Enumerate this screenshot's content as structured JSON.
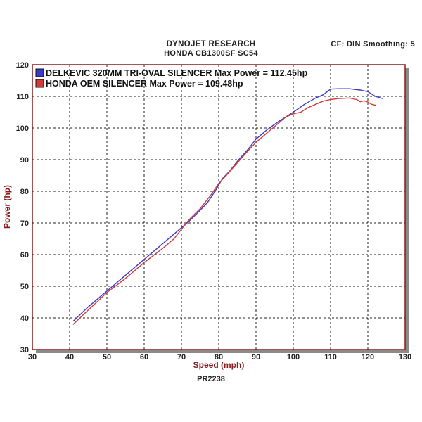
{
  "header": {
    "title": "DYNOJET RESEARCH",
    "subtitle": "HONDA CB1300SF SC54",
    "settings": "CF: DIN  Smoothing: 5"
  },
  "footer": {
    "code": "PR2238"
  },
  "colors": {
    "series_blue": "#3a3acb",
    "series_red": "#d23a3a",
    "frame": "#8b1a1a",
    "plot_bg": "#ffffff"
  },
  "chart_data": {
    "type": "line",
    "xlabel": "Speed (mph)",
    "ylabel": "Power (hp)",
    "xlim": [
      30,
      130
    ],
    "ylim": [
      30,
      120
    ],
    "x_ticks": [
      30,
      40,
      50,
      60,
      70,
      80,
      90,
      100,
      110,
      120,
      130
    ],
    "y_ticks": [
      30,
      40,
      50,
      60,
      70,
      80,
      90,
      100,
      110,
      120
    ],
    "grid": true,
    "legend_position": "top-left",
    "series": [
      {
        "name": "DELKEVIC 320MM TRI-OVAL SILENCER Max Power = 112.45hp",
        "color": "#3a3acb",
        "points": [
          [
            41,
            39
          ],
          [
            45,
            43.5
          ],
          [
            50,
            48.5
          ],
          [
            55,
            53.5
          ],
          [
            60,
            58.5
          ],
          [
            65,
            63.5
          ],
          [
            70,
            68.5
          ],
          [
            72,
            70.5
          ],
          [
            75,
            74
          ],
          [
            77,
            76.5
          ],
          [
            79,
            80
          ],
          [
            81,
            84
          ],
          [
            83,
            86.5
          ],
          [
            85,
            89.5
          ],
          [
            88,
            93.5
          ],
          [
            90,
            96.5
          ],
          [
            93,
            99.5
          ],
          [
            96,
            102
          ],
          [
            100,
            105
          ],
          [
            103,
            107.5
          ],
          [
            106,
            109.5
          ],
          [
            108,
            110.5
          ],
          [
            110,
            112.3
          ],
          [
            112,
            112.4
          ],
          [
            115,
            112.4
          ],
          [
            118,
            112
          ],
          [
            120,
            111.5
          ],
          [
            122,
            110
          ],
          [
            124,
            109.3
          ]
        ]
      },
      {
        "name": "HONDA OEM SILENCER Max Power = 109.48hp",
        "color": "#d23a3a",
        "points": [
          [
            41,
            38
          ],
          [
            45,
            42.5
          ],
          [
            50,
            48
          ],
          [
            55,
            52.5
          ],
          [
            60,
            57.5
          ],
          [
            65,
            62
          ],
          [
            68,
            65
          ],
          [
            70,
            68
          ],
          [
            72,
            71
          ],
          [
            75,
            74.5
          ],
          [
            78,
            79
          ],
          [
            80,
            82.5
          ],
          [
            82,
            85
          ],
          [
            85,
            89
          ],
          [
            88,
            93
          ],
          [
            90,
            95.5
          ],
          [
            93,
            98.5
          ],
          [
            96,
            101.5
          ],
          [
            98,
            103.5
          ],
          [
            100,
            104.5
          ],
          [
            102,
            105
          ],
          [
            104,
            106.5
          ],
          [
            106,
            107.5
          ],
          [
            108,
            108.5
          ],
          [
            110,
            109
          ],
          [
            112,
            109.3
          ],
          [
            115,
            109.5
          ],
          [
            117,
            109
          ],
          [
            118,
            108.3
          ],
          [
            119,
            108.6
          ],
          [
            120,
            108.2
          ],
          [
            121,
            107.5
          ],
          [
            122,
            107.2
          ]
        ]
      }
    ]
  }
}
